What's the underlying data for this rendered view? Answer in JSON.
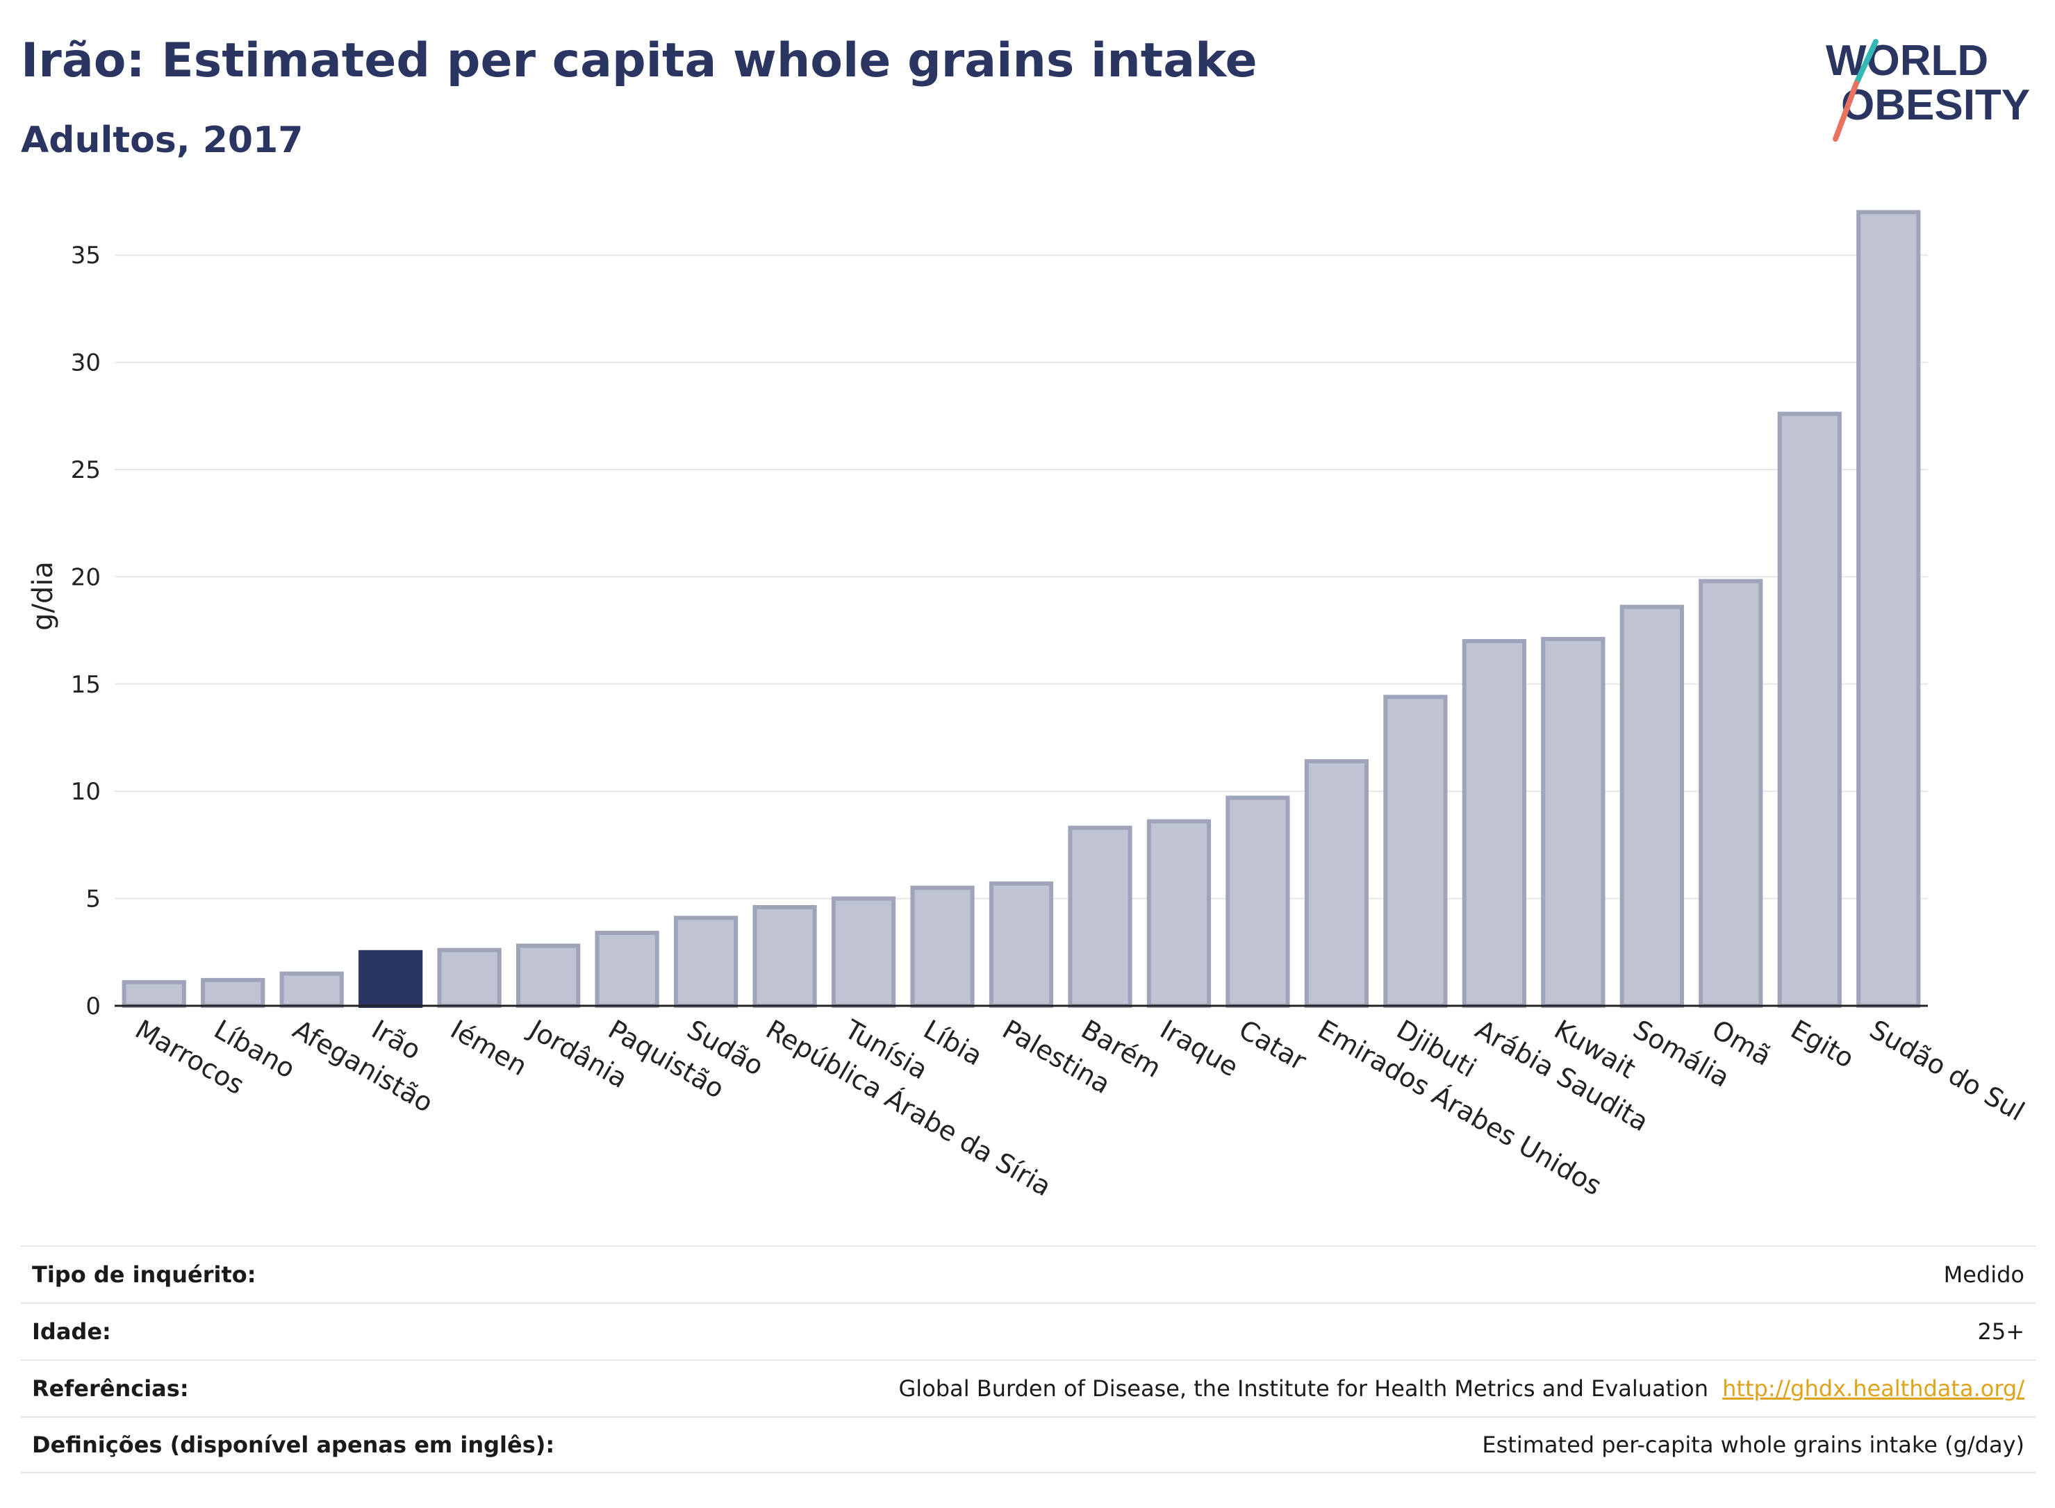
{
  "header": {
    "title": "Irão: Estimated per capita whole grains intake",
    "subtitle": "Adultos, 2017"
  },
  "logo": {
    "line1": "WORLD",
    "line2": "OBESITY",
    "colors": {
      "text": "#2a3561",
      "slash_teal": "#35b7b5",
      "slash_coral": "#e8715f"
    }
  },
  "colors": {
    "highlight": "#2a3561",
    "bar": "#c0c3d1",
    "bar_border": "#9fa4bb",
    "grid": "#e6e6e6"
  },
  "chart_data": {
    "type": "bar",
    "title": "Irão: Estimated per capita whole grains intake",
    "subtitle": "Adultos, 2017",
    "xlabel": "",
    "ylabel": "g/dia",
    "ylim": [
      0,
      37.5
    ],
    "yticks": [
      0,
      5,
      10,
      15,
      20,
      25,
      30,
      35
    ],
    "grid": true,
    "highlight": "Irão",
    "categories": [
      "Marrocos",
      "Líbano",
      "Afeganistão",
      "Irão",
      "Iémen",
      "Jordânia",
      "Paquistão",
      "Sudão",
      "República Árabe da Síria",
      "Tunísia",
      "Líbia",
      "Palestina",
      "Barém",
      "Iraque",
      "Catar",
      "Emirados Árabes Unidos",
      "Djibuti",
      "Arábia Saudita",
      "Kuwait",
      "Somália",
      "Omã",
      "Egito",
      "Sudão do Sul"
    ],
    "values": [
      1.1,
      1.2,
      1.5,
      2.5,
      2.6,
      2.8,
      3.4,
      4.1,
      4.6,
      5.0,
      5.5,
      5.7,
      8.3,
      8.6,
      9.7,
      11.4,
      14.4,
      17.0,
      17.1,
      18.6,
      19.8,
      27.6,
      37.0
    ]
  },
  "info": {
    "rows": [
      {
        "label": "Tipo de inquérito:",
        "value": "Medido"
      },
      {
        "label": "Idade:",
        "value": "25+"
      },
      {
        "label": "Referências:",
        "value": "Global Burden of Disease, the Institute for Health Metrics and Evaluation",
        "link": "http://ghdx.healthdata.org/"
      },
      {
        "label": "Definições (disponível apenas em inglês):",
        "value": "Estimated per-capita whole grains intake (g/day)"
      }
    ]
  }
}
